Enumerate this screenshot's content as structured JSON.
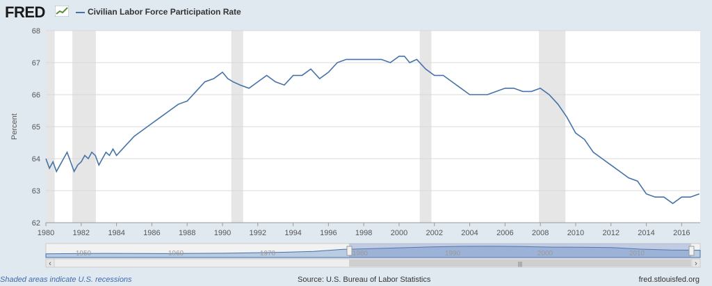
{
  "header": {
    "logo_text": "FRED",
    "series_label": "Civilian Labor Force Participation Rate"
  },
  "chart_data": {
    "type": "line",
    "title": "Civilian Labor Force Participation Rate",
    "ylabel": "Percent",
    "xlim": [
      1980,
      2017.05
    ],
    "ylim": [
      62,
      68
    ],
    "y_ticks": [
      62,
      63,
      64,
      65,
      66,
      67,
      68
    ],
    "x_ticks": [
      1980,
      1982,
      1984,
      1986,
      1988,
      1990,
      1992,
      1994,
      1996,
      1998,
      2000,
      2002,
      2004,
      2006,
      2008,
      2010,
      2012,
      2014,
      2016
    ],
    "grid": true,
    "legend": "top-left",
    "recessions": [
      [
        1980.0,
        1980.5
      ],
      [
        1981.5,
        1982.83
      ],
      [
        1990.5,
        1991.17
      ],
      [
        2001.17,
        2001.83
      ],
      [
        2007.92,
        2009.42
      ]
    ],
    "series": [
      {
        "name": "Civilian Labor Force Participation Rate",
        "color": "#4572a7",
        "x": [
          1980.0,
          1980.2,
          1980.4,
          1980.6,
          1980.8,
          1981.0,
          1981.2,
          1981.4,
          1981.6,
          1981.8,
          1982.0,
          1982.2,
          1982.4,
          1982.6,
          1982.8,
          1983.0,
          1983.2,
          1983.4,
          1983.6,
          1983.8,
          1984.0,
          1984.5,
          1985.0,
          1985.5,
          1986.0,
          1986.5,
          1987.0,
          1987.5,
          1988.0,
          1988.5,
          1989.0,
          1989.5,
          1990.0,
          1990.3,
          1990.6,
          1991.0,
          1991.5,
          1992.0,
          1992.5,
          1993.0,
          1993.5,
          1994.0,
          1994.5,
          1995.0,
          1995.5,
          1996.0,
          1996.5,
          1997.0,
          1997.5,
          1998.0,
          1998.5,
          1999.0,
          1999.5,
          2000.0,
          2000.3,
          2000.6,
          2001.0,
          2001.5,
          2002.0,
          2002.5,
          2003.0,
          2003.5,
          2004.0,
          2004.5,
          2005.0,
          2005.5,
          2006.0,
          2006.5,
          2007.0,
          2007.5,
          2008.0,
          2008.5,
          2009.0,
          2009.5,
          2010.0,
          2010.5,
          2011.0,
          2011.5,
          2012.0,
          2012.5,
          2013.0,
          2013.5,
          2014.0,
          2014.5,
          2015.0,
          2015.5,
          2016.0,
          2016.5,
          2017.0
        ],
        "values": [
          64.0,
          63.7,
          63.9,
          63.6,
          63.8,
          64.0,
          64.2,
          63.9,
          63.6,
          63.8,
          63.9,
          64.1,
          64.0,
          64.2,
          64.1,
          63.8,
          64.0,
          64.2,
          64.1,
          64.3,
          64.1,
          64.4,
          64.7,
          64.9,
          65.1,
          65.3,
          65.5,
          65.7,
          65.8,
          66.1,
          66.4,
          66.5,
          66.7,
          66.5,
          66.4,
          66.3,
          66.2,
          66.4,
          66.6,
          66.4,
          66.3,
          66.6,
          66.6,
          66.8,
          66.5,
          66.7,
          67.0,
          67.1,
          67.1,
          67.1,
          67.1,
          67.1,
          67.0,
          67.2,
          67.2,
          67.0,
          67.1,
          66.8,
          66.6,
          66.6,
          66.4,
          66.2,
          66.0,
          66.0,
          66.0,
          66.1,
          66.2,
          66.2,
          66.1,
          66.1,
          66.2,
          66.0,
          65.7,
          65.3,
          64.8,
          64.6,
          64.2,
          64.0,
          63.8,
          63.6,
          63.4,
          63.3,
          62.9,
          62.8,
          62.8,
          62.6,
          62.8,
          62.8,
          62.9
        ]
      }
    ]
  },
  "navigator": {
    "labels": [
      "1950",
      "1960",
      "1970",
      "1980",
      "1990",
      "2000",
      "2010"
    ],
    "scroll_glyph": "|||",
    "left_arrow": "‹",
    "right_arrow": "›"
  },
  "footer": {
    "left": "Shaded areas indicate U.S. recessions",
    "source": "Source: U.S. Bureau of Labor Statistics",
    "right": "fred.stlouisfed.org"
  }
}
